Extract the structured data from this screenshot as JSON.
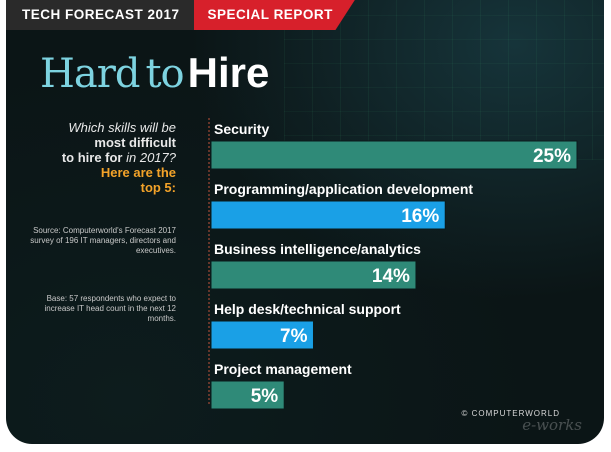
{
  "banner": {
    "left": "TECH FORECAST 2017",
    "right": "SPECIAL REPORT"
  },
  "headline": {
    "part1": "Hard",
    "part2": "to",
    "part3": "Hire"
  },
  "question": {
    "line1": "Which skills will be",
    "line2_bold": "most difficult",
    "line3_bold": "to hire for",
    "line3_rest": " in 2017?",
    "accent1": "Here are the",
    "accent2": "top 5:"
  },
  "source": "Source: Computerworld's Forecast 2017 survey of 196 IT managers, directors and executives.",
  "base": "Base: 57 respondents who expect to increase IT head count in the next 12 months.",
  "credit": "© COMPUTERWORLD",
  "colors": {
    "teal_bar": "#2f8a78",
    "blue_bar": "#1aa0e6",
    "accent": "#f4a329",
    "headline": "#7dd3e0"
  },
  "chart_data": {
    "type": "bar",
    "orientation": "horizontal",
    "categories": [
      "Security",
      "Programming/application development",
      "Business intelligence/analytics",
      "Help desk/technical support",
      "Project management"
    ],
    "values": [
      25,
      16,
      14,
      7,
      5
    ],
    "value_labels": [
      "25%",
      "16%",
      "14%",
      "7%",
      "5%"
    ],
    "bar_colors": [
      "#2f8a78",
      "#1aa0e6",
      "#2f8a78",
      "#1aa0e6",
      "#2f8a78"
    ],
    "xlim": [
      0,
      25
    ],
    "grid": false
  }
}
